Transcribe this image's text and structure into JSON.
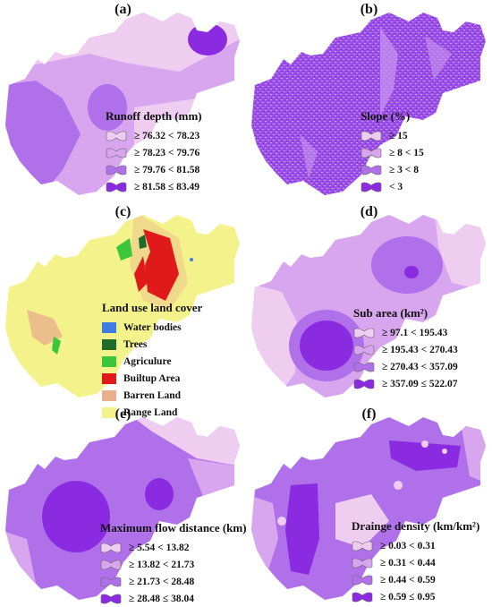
{
  "panels": {
    "a": {
      "label": "(a)",
      "legend_title": "Runoff depth (mm)",
      "classes": [
        {
          "text": "≥ 76.32 < 78.23",
          "color": "#eecdf0"
        },
        {
          "text": "≥ 78.23 < 79.76",
          "color": "#d8a6ee"
        },
        {
          "text": "≥ 79.76 < 81.58",
          "color": "#b070ea"
        },
        {
          "text": "≥ 81.58 ≤ 83.49",
          "color": "#8a2be2"
        }
      ]
    },
    "b": {
      "label": "(b)",
      "legend_title": "Slope (%)",
      "classes": [
        {
          "text": "≥ 15",
          "color": "#eecdf0"
        },
        {
          "text": "≥ 8 < 15",
          "color": "#d8a6ee"
        },
        {
          "text": "≥ 3 < 8",
          "color": "#b070ea"
        },
        {
          "text": "< 3",
          "color": "#8a2be2"
        }
      ]
    },
    "c": {
      "label": "(c)",
      "legend_title": "Land use land cover",
      "classes": [
        {
          "text": "Water bodies",
          "color": "#3d7de0"
        },
        {
          "text": "Trees",
          "color": "#1f6b2a"
        },
        {
          "text": "Agriculure",
          "color": "#3cc63c"
        },
        {
          "text": "Builtup Area",
          "color": "#e01a1a"
        },
        {
          "text": "Barren Land",
          "color": "#e8b08c"
        },
        {
          "text": "Range Land",
          "color": "#f4f28a"
        }
      ]
    },
    "d": {
      "label": "(d)",
      "legend_title": "Sub area (km²)",
      "classes": [
        {
          "text": "≥ 97.1 < 195.43",
          "color": "#eecdf0"
        },
        {
          "text": "≥ 195.43 < 270.43",
          "color": "#d8a6ee"
        },
        {
          "text": "≥ 270.43 < 357.09",
          "color": "#b070ea"
        },
        {
          "text": "≥ 357.09 ≤ 522.07",
          "color": "#8a2be2"
        }
      ]
    },
    "e": {
      "label": "(e)",
      "legend_title": "Maximum flow distance (km)",
      "classes": [
        {
          "text": "≥ 5.54 < 13.82",
          "color": "#eecdf0"
        },
        {
          "text": "≥ 13.82 < 21.73",
          "color": "#d8a6ee"
        },
        {
          "text": "≥ 21.73 < 28.48",
          "color": "#b070ea"
        },
        {
          "text": "≥ 28.48 ≤ 38.04",
          "color": "#8a2be2"
        }
      ]
    },
    "f": {
      "label": "(f)",
      "legend_title": "Drainge density (km/km²)",
      "classes": [
        {
          "text": "≥ 0.03 < 0.31",
          "color": "#eecdf0"
        },
        {
          "text": "≥ 0.31 < 0.44",
          "color": "#d8a6ee"
        },
        {
          "text": "≥ 0.44 < 0.59",
          "color": "#b070ea"
        },
        {
          "text": "≥ 0.59 ≤ 0.95",
          "color": "#8a2be2"
        }
      ]
    }
  }
}
